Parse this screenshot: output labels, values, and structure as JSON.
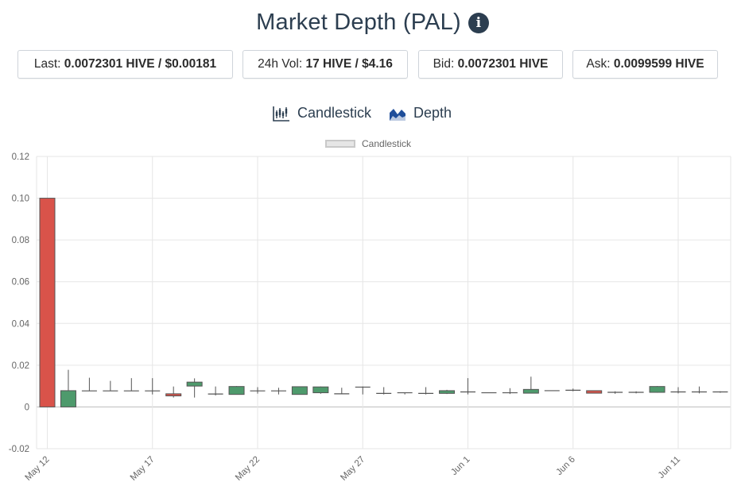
{
  "header": {
    "title": "Market Depth (PAL)",
    "info_icon": "info-icon"
  },
  "stats": {
    "last": {
      "label": "Last:",
      "value": "0.0072301 HIVE / $0.00181"
    },
    "vol": {
      "label": "24h Vol:",
      "value": "17 HIVE / $4.16"
    },
    "bid": {
      "label": "Bid:",
      "value": "0.0072301 HIVE"
    },
    "ask": {
      "label": "Ask:",
      "value": "0.0099599 HIVE"
    }
  },
  "tabs": [
    {
      "label": "Candlestick",
      "icon": "candlestick-chart-icon"
    },
    {
      "label": "Depth",
      "icon": "depth-chart-icon"
    }
  ],
  "colors": {
    "up": "#4e9a6c",
    "down": "#d9534a",
    "accent": "#2c3e50",
    "depth_icon": "#1f4e9a"
  },
  "chart_data": {
    "type": "candlestick",
    "legend": [
      "Candlestick"
    ],
    "legend_position": "top-center",
    "grid": true,
    "ylim": [
      -0.02,
      0.12
    ],
    "yticks": [
      "0.12",
      "0.10",
      "0.08",
      "0.06",
      "0.04",
      "0.02",
      "0",
      "-0.02"
    ],
    "xticks": [
      "May 12",
      "May 17",
      "May 22",
      "May 27",
      "Jun 1",
      "Jun 6",
      "Jun 11"
    ],
    "candles": [
      {
        "date": "May 12",
        "open": 0.1,
        "high": 0.1,
        "low": 0.0,
        "close": 0.0
      },
      {
        "date": "May 13",
        "open": 0.0,
        "high": 0.0178,
        "low": 0.0,
        "close": 0.0078
      },
      {
        "date": "May 14",
        "open": 0.0077,
        "high": 0.014,
        "low": 0.0077,
        "close": 0.0077
      },
      {
        "date": "May 15",
        "open": 0.0077,
        "high": 0.0125,
        "low": 0.0077,
        "close": 0.0077
      },
      {
        "date": "May 16",
        "open": 0.0077,
        "high": 0.0138,
        "low": 0.0077,
        "close": 0.0077
      },
      {
        "date": "May 17",
        "open": 0.0077,
        "high": 0.0138,
        "low": 0.006,
        "close": 0.0077
      },
      {
        "date": "May 18",
        "open": 0.0063,
        "high": 0.0098,
        "low": 0.0045,
        "close": 0.0053
      },
      {
        "date": "May 19",
        "open": 0.01,
        "high": 0.0137,
        "low": 0.0045,
        "close": 0.0119
      },
      {
        "date": "May 20",
        "open": 0.0062,
        "high": 0.0098,
        "low": 0.0055,
        "close": 0.0062
      },
      {
        "date": "May 21",
        "open": 0.006,
        "high": 0.01,
        "low": 0.006,
        "close": 0.0098
      },
      {
        "date": "May 22",
        "open": 0.0077,
        "high": 0.0095,
        "low": 0.0064,
        "close": 0.0077
      },
      {
        "date": "May 23",
        "open": 0.0077,
        "high": 0.0092,
        "low": 0.006,
        "close": 0.0077
      },
      {
        "date": "May 24",
        "open": 0.006,
        "high": 0.0098,
        "low": 0.006,
        "close": 0.0097
      },
      {
        "date": "May 25",
        "open": 0.0068,
        "high": 0.0098,
        "low": 0.0063,
        "close": 0.0096
      },
      {
        "date": "May 26",
        "open": 0.0063,
        "high": 0.0092,
        "low": 0.0063,
        "close": 0.0063
      },
      {
        "date": "May 27",
        "open": 0.0095,
        "high": 0.0098,
        "low": 0.006,
        "close": 0.0095
      },
      {
        "date": "May 28",
        "open": 0.0065,
        "high": 0.0095,
        "low": 0.006,
        "close": 0.0065
      },
      {
        "date": "May 29",
        "open": 0.0068,
        "high": 0.0068,
        "low": 0.006,
        "close": 0.0065
      },
      {
        "date": "May 30",
        "open": 0.0065,
        "high": 0.0095,
        "low": 0.006,
        "close": 0.0065
      },
      {
        "date": "May 31",
        "open": 0.0065,
        "high": 0.0082,
        "low": 0.0062,
        "close": 0.0078
      },
      {
        "date": "Jun 1",
        "open": 0.0072,
        "high": 0.0138,
        "low": 0.006,
        "close": 0.0072
      },
      {
        "date": "Jun 2",
        "open": 0.0068,
        "high": 0.0068,
        "low": 0.0068,
        "close": 0.0068
      },
      {
        "date": "Jun 3",
        "open": 0.0068,
        "high": 0.009,
        "low": 0.0062,
        "close": 0.0068
      },
      {
        "date": "Jun 4",
        "open": 0.0066,
        "high": 0.0145,
        "low": 0.0066,
        "close": 0.0084
      },
      {
        "date": "Jun 5",
        "open": 0.0078,
        "high": 0.0078,
        "low": 0.0078,
        "close": 0.0078
      },
      {
        "date": "Jun 6",
        "open": 0.008,
        "high": 0.0088,
        "low": 0.0075,
        "close": 0.008
      },
      {
        "date": "Jun 7",
        "open": 0.0078,
        "high": 0.0078,
        "low": 0.0065,
        "close": 0.0066
      },
      {
        "date": "Jun 8",
        "open": 0.007,
        "high": 0.0075,
        "low": 0.0063,
        "close": 0.007
      },
      {
        "date": "Jun 9",
        "open": 0.007,
        "high": 0.0075,
        "low": 0.0065,
        "close": 0.007
      },
      {
        "date": "Jun 10",
        "open": 0.007,
        "high": 0.01,
        "low": 0.0068,
        "close": 0.0098
      },
      {
        "date": "Jun 11",
        "open": 0.0072,
        "high": 0.0095,
        "low": 0.0065,
        "close": 0.0072
      },
      {
        "date": "Jun 12",
        "open": 0.0072,
        "high": 0.0098,
        "low": 0.0065,
        "close": 0.0072
      },
      {
        "date": "Jun 13",
        "open": 0.0072,
        "high": 0.0075,
        "low": 0.0068,
        "close": 0.0072
      }
    ]
  }
}
